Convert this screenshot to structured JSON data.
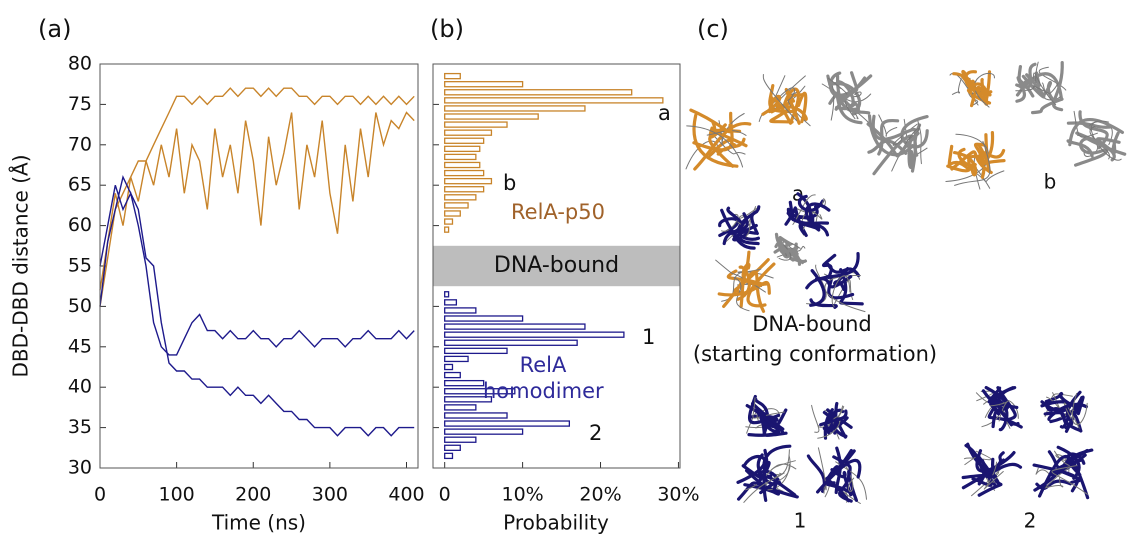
{
  "chart_data": [
    {
      "type": "line",
      "panel": "(a)",
      "ylabel": "DBD-DBD distance (Å)",
      "xlabel": "Time (ns)",
      "xlim": [
        0,
        415
      ],
      "xticks": [
        0,
        100,
        200,
        300,
        400
      ],
      "ylim": [
        30,
        80
      ],
      "yticks": [
        30,
        35,
        40,
        45,
        50,
        55,
        60,
        65,
        70,
        75,
        80
      ],
      "x": [
        0,
        10,
        20,
        30,
        40,
        50,
        60,
        70,
        80,
        90,
        100,
        110,
        120,
        130,
        140,
        150,
        160,
        170,
        180,
        190,
        200,
        210,
        220,
        230,
        240,
        250,
        260,
        270,
        280,
        290,
        300,
        310,
        320,
        330,
        340,
        350,
        360,
        370,
        380,
        390,
        400,
        410
      ],
      "series": [
        {
          "color": "#c8842a",
          "values": [
            50,
            56,
            62,
            64,
            66,
            68,
            68,
            70,
            72,
            74,
            76,
            76,
            75,
            76,
            75,
            76,
            76,
            77,
            76,
            77,
            77,
            76,
            77,
            76,
            77,
            77,
            76,
            76,
            75,
            76,
            76,
            75,
            76,
            76,
            75,
            76,
            75,
            76,
            75,
            76,
            75,
            76
          ]
        },
        {
          "color": "#c8842a",
          "values": [
            52,
            58,
            64,
            60,
            66,
            63,
            68,
            65,
            70,
            66,
            72,
            64,
            70,
            68,
            62,
            72,
            66,
            70,
            64,
            73,
            68,
            60,
            71,
            65,
            69,
            74,
            62,
            70,
            66,
            73,
            64,
            59,
            70,
            63,
            72,
            66,
            74,
            70,
            73,
            72,
            74,
            73
          ]
        },
        {
          "color": "#1e1a8c",
          "values": [
            55,
            60,
            65,
            62,
            64,
            60,
            55,
            48,
            45,
            44,
            44,
            46,
            48,
            49,
            47,
            47,
            46,
            47,
            46,
            46,
            47,
            46,
            46,
            45,
            46,
            46,
            47,
            46,
            45,
            46,
            46,
            46,
            45,
            46,
            46,
            47,
            46,
            46,
            46,
            47,
            46,
            47
          ]
        },
        {
          "color": "#1e1a8c",
          "values": [
            50,
            58,
            62,
            66,
            64,
            62,
            56,
            55,
            48,
            43,
            42,
            42,
            41,
            41,
            40,
            40,
            40,
            39,
            40,
            39,
            39,
            38,
            39,
            38,
            37,
            37,
            36,
            36,
            35,
            35,
            35,
            34,
            35,
            35,
            35,
            34,
            35,
            35,
            34,
            35,
            35,
            35
          ]
        }
      ]
    },
    {
      "type": "histogram",
      "orientation": "horizontal",
      "panel": "(b)",
      "xlabel": "Probability",
      "xlim": [
        -1.5,
        30.2
      ],
      "xticks": [
        0,
        {
          "value": 10,
          "label": "10%"
        },
        {
          "value": 20,
          "label": "20%"
        },
        {
          "value": 30,
          "label": "30%"
        }
      ],
      "ylim": [
        30,
        80
      ],
      "yticks": [
        30,
        35,
        40,
        45,
        50,
        55,
        60,
        65,
        70,
        75,
        80
      ],
      "bins": [
        30,
        31,
        32,
        33,
        34,
        35,
        36,
        37,
        38,
        39,
        40,
        41,
        42,
        43,
        44,
        45,
        46,
        47,
        48,
        49,
        50,
        51,
        52,
        53,
        54,
        55,
        56,
        57,
        58,
        59,
        60,
        61,
        62,
        63,
        64,
        65,
        66,
        67,
        68,
        69,
        70,
        71,
        72,
        73,
        74,
        75,
        76,
        77,
        78,
        79,
        80
      ],
      "series": [
        {
          "name": "RelA-p50",
          "color": "#c8842a",
          "label_color": "#a0622a",
          "values": [
            0,
            0,
            0,
            0,
            0,
            0,
            0,
            0,
            0,
            0,
            0,
            0,
            0,
            0,
            0,
            0,
            0,
            0,
            0,
            0,
            0,
            0,
            0,
            0,
            0,
            0,
            0,
            0,
            0,
            0.5,
            1,
            2,
            3,
            4,
            5,
            6,
            5,
            4.5,
            4,
            4.5,
            5,
            6,
            8,
            12,
            18,
            28,
            24,
            10,
            2,
            0
          ]
        },
        {
          "name": "RelA homodimer",
          "color": "#1e1a8c",
          "label_color": "#2e2a9a",
          "values": [
            0,
            1,
            2,
            4,
            10,
            16,
            8,
            4,
            6,
            9,
            5,
            2,
            1,
            3,
            8,
            17,
            23,
            18,
            10,
            4,
            1.5,
            0.5,
            0,
            0,
            0,
            0,
            0,
            0,
            0,
            0,
            0,
            0,
            0,
            0,
            0,
            0,
            0,
            0,
            0,
            0,
            0,
            0,
            0,
            0,
            0,
            0,
            0,
            0,
            0,
            0
          ]
        }
      ],
      "band": {
        "label": "DNA-bound",
        "range": [
          52.5,
          57.5
        ],
        "color": "#bdbdbd"
      },
      "annotations": [
        "a",
        "b",
        "1",
        "2"
      ]
    }
  ],
  "panel_c": {
    "label": "(c)",
    "structures": [
      "a",
      "b",
      "1",
      "2"
    ],
    "reference_label": "DNA-bound",
    "reference_sublabel": "(starting conformation)"
  }
}
